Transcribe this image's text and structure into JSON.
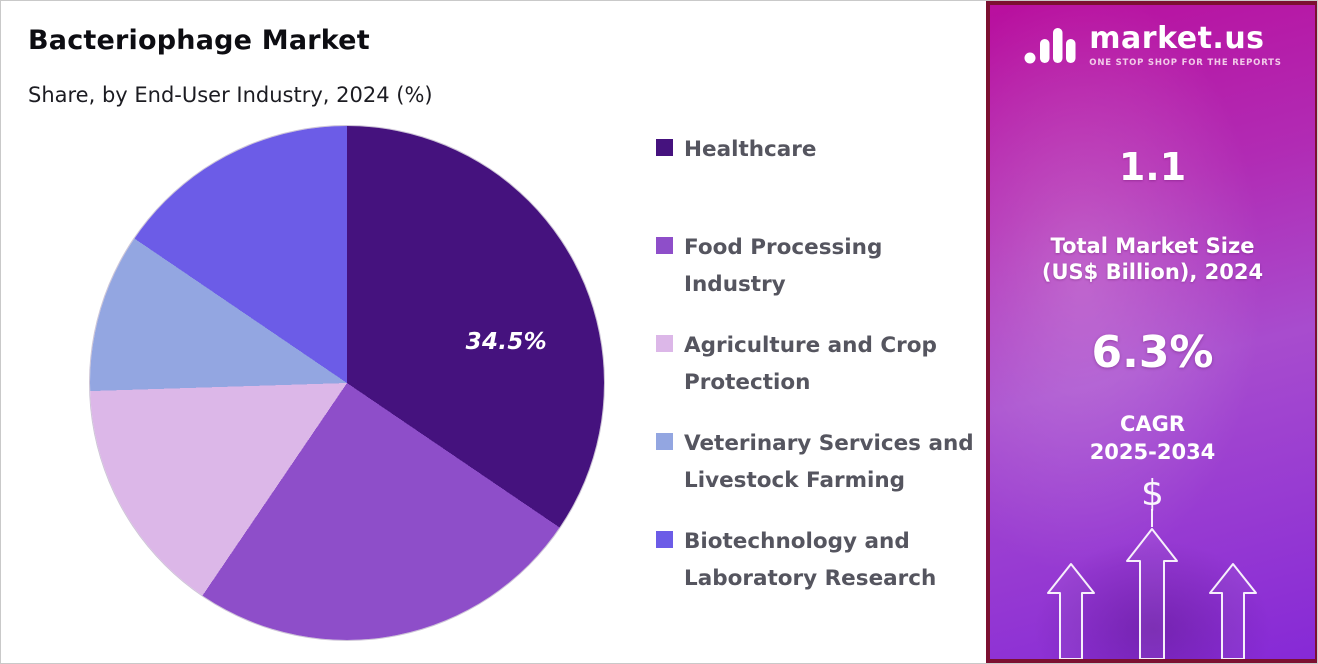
{
  "header": {
    "title": "Bacteriophage Market",
    "subtitle": "Share, by End-User Industry, 2024 (%)"
  },
  "chart_data": {
    "type": "pie",
    "title": "Bacteriophage Market",
    "subtitle": "Share, by End-User Industry, 2024 (%)",
    "unit": "%",
    "start_angle_deg": 0,
    "direction": "clockwise",
    "legend_position": "right",
    "shown_data_label": "34.5%",
    "slices": [
      {
        "label": "Healthcare",
        "value": 34.5,
        "color": "#45127e",
        "data_label": "34.5%"
      },
      {
        "label": "Food Processing Industry",
        "value": 25,
        "color": "#8e4ec9",
        "data_label": ""
      },
      {
        "label": "Agriculture and Crop Protection",
        "value": 15,
        "color": "#dcb7e8",
        "data_label": ""
      },
      {
        "label": "Veterinary Services and Livestock Farming",
        "value": 10,
        "color": "#93a6e1",
        "data_label": ""
      },
      {
        "label": "Biotechnology and Laboratory Research",
        "value": 15.5,
        "color": "#6c5ce7",
        "data_label": ""
      }
    ]
  },
  "sidebar": {
    "brand_name": "market.us",
    "brand_tagline": "ONE STOP SHOP FOR THE REPORTS",
    "market_size_value": "1.1",
    "market_size_label": "Total Market Size (US$ Billion), 2024",
    "cagr_value": "6.3%",
    "cagr_word": "CAGR",
    "cagr_years": "2025-2034",
    "dollar_symbol": "$",
    "accent_colors": {
      "gradient_top": "#b90f9e",
      "gradient_bottom": "#8629d6",
      "panel_border": "#7c1031"
    }
  }
}
